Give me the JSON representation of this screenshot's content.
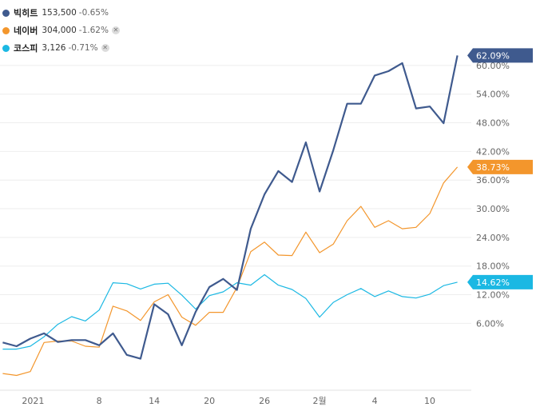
{
  "legend": [
    {
      "name": "빅히트",
      "price": "153,500",
      "change": "-0.65%",
      "color": "#3f5a8e",
      "removable": false
    },
    {
      "name": "네이버",
      "price": "304,000",
      "change": "-1.62%",
      "color": "#f3962c",
      "removable": true
    },
    {
      "name": "코스피",
      "price": "3,126",
      "change": "-0.71%",
      "color": "#1bb8e3",
      "removable": true
    }
  ],
  "chart_data": {
    "type": "line",
    "y_ticks": [
      6,
      12,
      18,
      24,
      30,
      36,
      42,
      48,
      54,
      60
    ],
    "y_tick_labels": [
      "6.00%",
      "12.00%",
      "18.00%",
      "24.00%",
      "30.00%",
      "36.00%",
      "42.00%",
      "48.00%",
      "54.00%",
      "60.00%"
    ],
    "ylim": [
      -7.5,
      64.5
    ],
    "x_tick_labels": [
      {
        "label": "2021",
        "index": 2.2
      },
      {
        "label": "8",
        "index": 7
      },
      {
        "label": "14",
        "index": 11
      },
      {
        "label": "20",
        "index": 15
      },
      {
        "label": "26",
        "index": 19
      },
      {
        "label": "2월",
        "index": 23
      },
      {
        "label": "4",
        "index": 27
      },
      {
        "label": "10",
        "index": 31
      }
    ],
    "xlim": [
      -0.2,
      33.2
    ],
    "grid": true,
    "legend_position": "top-left",
    "series": [
      {
        "name": "빅히트",
        "color": "#3f5a8e",
        "end_label": "62.09%",
        "values": [
          2.0,
          1.2,
          2.8,
          3.9,
          2.1,
          2.5,
          2.5,
          1.4,
          3.9,
          -0.6,
          -1.4,
          10.0,
          7.9,
          1.4,
          8.4,
          13.6,
          15.3,
          13.0,
          25.8,
          33.0,
          37.9,
          35.6,
          43.9,
          33.6,
          42.3,
          52.0,
          52.0,
          57.9,
          58.8,
          60.5,
          51.0,
          51.4,
          47.9,
          62.09
        ]
      },
      {
        "name": "네이버",
        "color": "#f3962c",
        "end_label": "38.73%",
        "values": [
          -4.5,
          -4.9,
          -4.1,
          2.0,
          2.3,
          2.3,
          1.2,
          1.0,
          9.6,
          8.6,
          6.6,
          10.5,
          12.0,
          7.3,
          5.6,
          8.3,
          8.3,
          13.5,
          21.0,
          23.0,
          20.3,
          20.2,
          25.1,
          20.8,
          22.6,
          27.5,
          30.5,
          26.1,
          27.5,
          25.8,
          26.1,
          29.0,
          35.4,
          38.73
        ]
      },
      {
        "name": "코스피",
        "color": "#1bb8e3",
        "end_label": "14.62%",
        "values": [
          0.6,
          0.6,
          1.2,
          3.2,
          5.8,
          7.4,
          6.5,
          8.8,
          14.5,
          14.3,
          13.2,
          14.2,
          14.4,
          11.9,
          9.0,
          11.8,
          12.6,
          14.5,
          14.0,
          16.2,
          14.0,
          13.1,
          11.2,
          7.3,
          10.4,
          12.0,
          13.3,
          11.6,
          12.8,
          11.6,
          11.3,
          12.1,
          13.9,
          14.62
        ]
      }
    ]
  }
}
